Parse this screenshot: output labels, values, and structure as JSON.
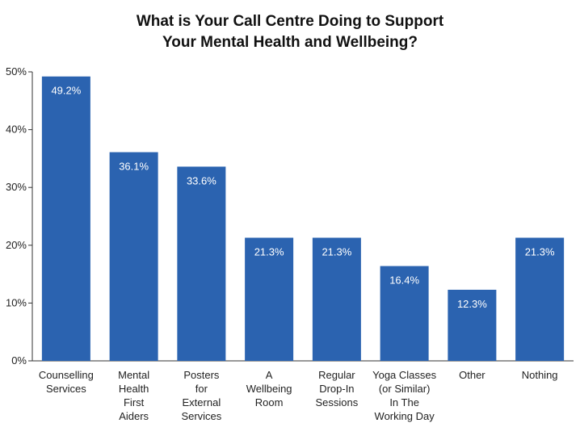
{
  "chart_data": {
    "type": "bar",
    "title": [
      "What is Your Call Centre Doing to Support",
      "Your Mental Health and Wellbeing?"
    ],
    "categories": [
      [
        "Counselling",
        "Services"
      ],
      [
        "Mental",
        "Health",
        "First",
        "Aiders"
      ],
      [
        "Posters",
        "for",
        "External",
        "Services"
      ],
      [
        "A",
        "Wellbeing",
        "Room"
      ],
      [
        "Regular",
        "Drop-In",
        "Sessions"
      ],
      [
        "Yoga Classes",
        "(or Similar)",
        "In The",
        "Working Day"
      ],
      [
        "Other"
      ],
      [
        "Nothing"
      ]
    ],
    "values": [
      49.2,
      36.1,
      33.6,
      21.3,
      21.3,
      16.4,
      12.3,
      21.3
    ],
    "data_labels": [
      "49.2%",
      "36.1%",
      "33.6%",
      "21.3%",
      "21.3%",
      "16.4%",
      "12.3%",
      "21.3%"
    ],
    "yticks": [
      "0%",
      "10%",
      "20%",
      "30%",
      "40%",
      "50%"
    ],
    "ylim": [
      0,
      50
    ],
    "grid": false,
    "bar_color": "#2b63b0",
    "axis_color": "#333333"
  }
}
